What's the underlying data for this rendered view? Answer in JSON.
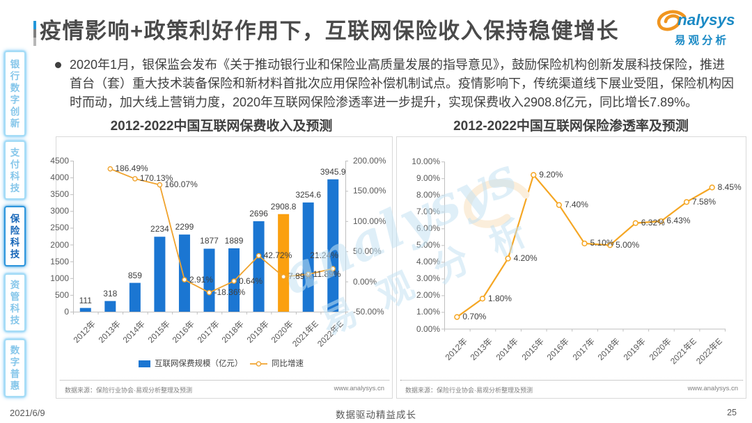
{
  "header": {
    "title": "疫情影响+政策利好作用下，互联网保险收入保持稳健增长",
    "bullet_lines": [
      "2020年1月，银保监会发布《关于推动银行业和保险业高质量发展的指导意见》，鼓励保险机构创新发展科技保险，推进",
      "首台（套）重大技术装备保险和新材料首批次应用保险补偿机制试点。疫情影响下，传统渠道线下展业受阻，保险机构因",
      "时而动，加大线上营销力度，2020年互联网保险渗透率进一步提升，实现保费收入2908.8亿元，同比增长7.89%。"
    ]
  },
  "logo": {
    "latin": "nalysys",
    "cn": "易观分析"
  },
  "sidebar": {
    "items": [
      {
        "label": "银行数字创新",
        "selected": false
      },
      {
        "label": "支付科技",
        "selected": false
      },
      {
        "label": "保险科技",
        "selected": true
      },
      {
        "label": "资管科技",
        "selected": false
      },
      {
        "label": "数字普惠",
        "selected": false
      }
    ]
  },
  "watermark": {
    "line1": "analysys",
    "line2": "易观分析"
  },
  "footer": {
    "date": "2021/6/9",
    "slogan": "数据驱动精益成长",
    "page": "25"
  },
  "colors": {
    "bar_blue": "#1b76d2",
    "bar_highlight": "#fba00f",
    "line_orange_left": "#f0a32e",
    "line_orange_right": "#f5a623",
    "axis_gray": "#bfbfbf",
    "logo_blue": "#1b8ac5",
    "logo_orange": "#f0951f"
  },
  "chart_data": [
    {
      "type": "bar",
      "title": "2012-2022中国互联网保费收入及预测",
      "categories": [
        "2012年",
        "2013年",
        "2014年",
        "2015年",
        "2016年",
        "2017年",
        "2018年",
        "2019年",
        "2020年",
        "2021年E",
        "2022年E"
      ],
      "series": [
        {
          "name": "互联网保费规模（亿元）",
          "type": "bar",
          "values": [
            111,
            318,
            859,
            2234,
            2299,
            1877,
            1889,
            2696,
            2908.8,
            3254.6,
            3945.9
          ],
          "labels": [
            "111",
            "318",
            "859",
            "2234",
            "2299",
            "1877",
            "1889",
            "2696",
            "2908.8",
            "3254.6",
            "3945.9"
          ],
          "highlight_index": 8
        },
        {
          "name": "同比增速",
          "type": "line",
          "axis": "right",
          "values": [
            null,
            186.49,
            170.13,
            160.07,
            2.91,
            -18.36,
            0.64,
            42.72,
            7.89,
            11.89,
            21.24
          ],
          "labels": [
            null,
            "186.49%",
            "170.13%",
            "160.07%",
            "2.91%",
            "-18.36%",
            "0.64%",
            "42.72%",
            "7.89%",
            "11.89%",
            "21.24%"
          ]
        }
      ],
      "left_axis": {
        "min": 0,
        "max": 4500,
        "step": 500,
        "labels": [
          "0",
          "500",
          "1000",
          "1500",
          "2000",
          "2500",
          "3000",
          "3500",
          "4000",
          "4500"
        ]
      },
      "right_axis": {
        "min": -50,
        "max": 200,
        "step": 50,
        "labels": [
          "-50.00%",
          "0.00%",
          "50.00%",
          "100.00%",
          "150.00%",
          "200.00%"
        ]
      },
      "legend_position": "bottom",
      "source": "数据来源：保险行业协会·易观分析整理及预测",
      "site": "www.analysys.cn"
    },
    {
      "type": "line",
      "title": "2012-2022中国互联网保险渗透率及预测",
      "categories": [
        "2012年",
        "2013年",
        "2014年",
        "2015年",
        "2016年",
        "2017年",
        "2018年",
        "2019年",
        "2020年",
        "2021年E",
        "2022年E"
      ],
      "series": [
        {
          "name": "互联网保险渗透率",
          "type": "line",
          "values": [
            0.7,
            1.8,
            4.2,
            9.2,
            7.4,
            5.1,
            5.0,
            6.32,
            6.43,
            7.58,
            8.45
          ],
          "labels": [
            "0.70%",
            "1.80%",
            "4.20%",
            "9.20%",
            "7.40%",
            "5.10%",
            "5.00%",
            "6.32%",
            "6.43%",
            "7.58%",
            "8.45%"
          ]
        }
      ],
      "y_axis": {
        "min": 0,
        "max": 10,
        "step": 1,
        "labels": [
          "0.00%",
          "1.00%",
          "2.00%",
          "3.00%",
          "4.00%",
          "5.00%",
          "6.00%",
          "7.00%",
          "8.00%",
          "9.00%",
          "10.00%"
        ]
      },
      "source": "数据来源：保险行业协会·易观分析整理及预测",
      "site": "www.analysys.cn"
    }
  ]
}
